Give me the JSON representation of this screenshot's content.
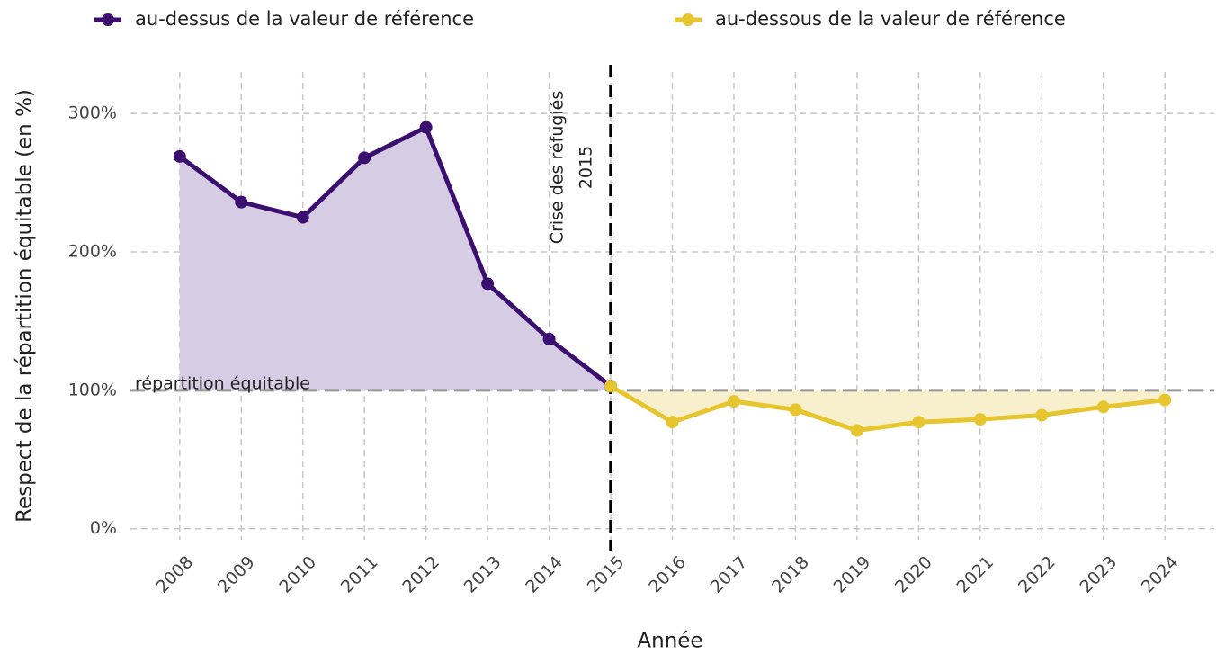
{
  "chart_data": {
    "type": "line",
    "x_label": "Année",
    "y_label": "Respect de la répartition équitable (en %)",
    "x": [
      2008,
      2009,
      2010,
      2011,
      2012,
      2013,
      2014,
      2015,
      2016,
      2017,
      2018,
      2019,
      2020,
      2021,
      2022,
      2023,
      2024
    ],
    "series": [
      {
        "name": "au-dessus de la valeur de référence",
        "color": "#3b0f70",
        "fill": "#d6cce3",
        "values": [
          269,
          236,
          225,
          268,
          290,
          177,
          137,
          103,
          null,
          null,
          null,
          null,
          null,
          null,
          null,
          null,
          null
        ]
      },
      {
        "name": "au-dessous de la valeur de référence",
        "color": "#e6c52e",
        "fill": "#f8f0cc",
        "values": [
          null,
          null,
          null,
          null,
          null,
          null,
          null,
          103,
          77,
          92,
          86,
          71,
          77,
          79,
          82,
          88,
          93
        ]
      }
    ],
    "xlim": [
      2007.2,
      2024.8
    ],
    "xticks": [
      2008,
      2009,
      2010,
      2011,
      2012,
      2013,
      2014,
      2015,
      2016,
      2017,
      2018,
      2019,
      2020,
      2021,
      2022,
      2023,
      2024
    ],
    "ylim": [
      -8,
      330
    ],
    "yticks": [
      {
        "value": 0,
        "label": "0%"
      },
      {
        "value": 100,
        "label": "100%"
      },
      {
        "value": 200,
        "label": "200%"
      },
      {
        "value": 300,
        "label": "300%"
      }
    ],
    "grid": true,
    "legend": "top",
    "reference": {
      "value": 100,
      "label": "répartition équitable"
    },
    "annotation": {
      "x": 2015,
      "lines": [
        "Crise des réfugiés",
        "2015"
      ]
    }
  }
}
